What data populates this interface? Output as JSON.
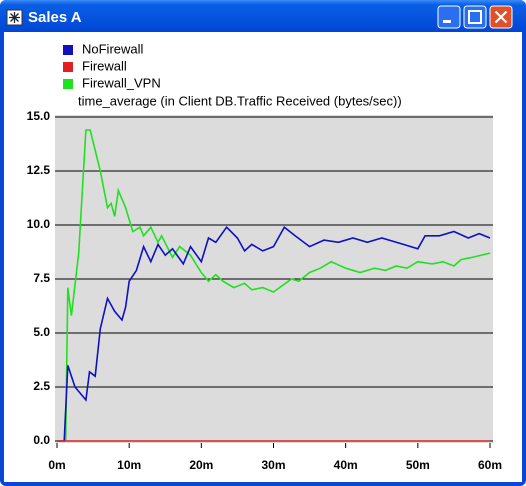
{
  "window": {
    "title": "Sales A"
  },
  "chart_data": {
    "type": "line",
    "subtitle": "time_average (in Client DB.Traffic Received (bytes/sec))",
    "series": [
      {
        "name": "NoFirewall",
        "color": "#1010c0",
        "x": [
          0,
          1,
          1.5,
          2.5,
          4,
          4.5,
          5.3,
          6,
          7,
          8,
          9,
          9.5,
          10,
          11,
          12,
          13,
          14,
          15,
          16,
          17.5,
          18.5,
          20,
          21,
          22,
          23.5,
          25,
          26,
          27,
          28.5,
          30,
          31.5,
          33,
          35,
          37,
          39,
          41,
          43,
          45,
          48,
          50,
          51,
          53,
          55,
          57,
          58.5,
          60
        ],
        "values": [
          0,
          0,
          3.5,
          2.5,
          1.9,
          3.2,
          3.0,
          5.2,
          6.6,
          6.0,
          5.6,
          6.2,
          7.4,
          7.9,
          9.0,
          8.3,
          9.1,
          8.6,
          8.9,
          8.2,
          9.0,
          8.3,
          9.4,
          9.2,
          9.9,
          9.4,
          8.8,
          9.1,
          8.8,
          9.0,
          9.9,
          9.5,
          9.0,
          9.3,
          9.2,
          9.4,
          9.2,
          9.4,
          9.1,
          8.9,
          9.5,
          9.5,
          9.7,
          9.4,
          9.6,
          9.4
        ]
      },
      {
        "name": "Firewall",
        "color": "#e02020",
        "x": [
          0,
          60
        ],
        "values": [
          0,
          0
        ]
      },
      {
        "name": "Firewall_VPN",
        "color": "#20e020",
        "x": [
          1.2,
          1.5,
          2,
          3,
          4,
          4.6,
          6,
          7,
          7.5,
          8,
          8.5,
          9.5,
          10.5,
          11.5,
          12,
          13,
          14,
          14.5,
          16,
          17,
          18.5,
          20,
          21,
          22,
          23,
          24.5,
          26,
          27,
          28.5,
          30,
          32.5,
          33.5,
          35,
          36.5,
          38,
          40,
          42,
          44,
          45.5,
          47,
          48.5,
          50,
          52,
          53.5,
          55,
          56,
          57.5,
          60
        ],
        "values": [
          0,
          7.1,
          5.8,
          8.7,
          14.4,
          14.4,
          12.5,
          10.8,
          11.0,
          10.4,
          11.6,
          10.8,
          9.7,
          9.9,
          9.5,
          9.9,
          9.2,
          9.5,
          8.5,
          9.0,
          8.6,
          7.8,
          7.4,
          7.7,
          7.4,
          7.1,
          7.3,
          7.0,
          7.1,
          6.9,
          7.5,
          7.4,
          7.8,
          8.0,
          8.3,
          8.0,
          7.8,
          8.0,
          7.9,
          8.1,
          8.0,
          8.3,
          8.2,
          8.3,
          8.1,
          8.4,
          8.5,
          8.7
        ]
      }
    ],
    "xlim": [
      0,
      60
    ],
    "xticks": [
      {
        "value": 0,
        "label": "0m"
      },
      {
        "value": 10,
        "label": "10m"
      },
      {
        "value": 20,
        "label": "20m"
      },
      {
        "value": 30,
        "label": "30m"
      },
      {
        "value": 40,
        "label": "40m"
      },
      {
        "value": 50,
        "label": "50m"
      },
      {
        "value": 60,
        "label": "60m"
      }
    ],
    "ylim": [
      0,
      15
    ],
    "yticks": [
      {
        "value": 0,
        "label": "0.0"
      },
      2.5,
      {
        "value": 5,
        "label": "5.0"
      },
      7.5,
      {
        "value": 10,
        "label": "10.0"
      },
      12.5,
      {
        "value": 15,
        "label": "15.0"
      }
    ],
    "grid": true
  }
}
